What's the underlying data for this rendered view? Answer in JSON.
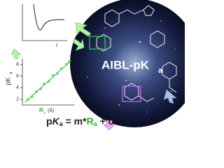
{
  "potential_plot": {
    "x_label": "r"
  },
  "chart_data": {
    "type": "scatter",
    "y_label": {
      "main": "pK",
      "sub": "a"
    },
    "x_label": {
      "main": "R",
      "sub": "a",
      "unit": "(Å)"
    },
    "ylim": [
      1,
      9
    ],
    "yticks": [
      2,
      4,
      6,
      8
    ]
  },
  "equation": {
    "p": "p",
    "K": "K",
    "a": "a",
    "rest1": " = m*",
    "R": "R",
    "a2": "a",
    "rest2": " + c"
  },
  "title": {
    "main": "AIBL-pK",
    "sub": "a"
  }
}
